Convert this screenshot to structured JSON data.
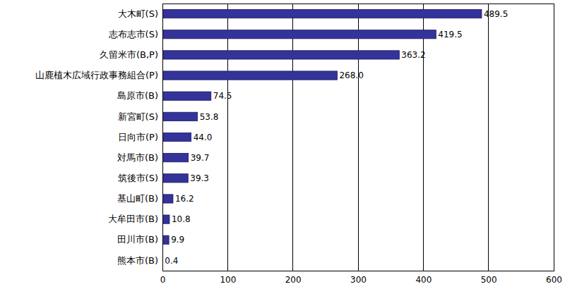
{
  "chart_data": {
    "type": "bar",
    "orientation": "horizontal",
    "categories": [
      "大木町(S)",
      "志布志市(S)",
      "久留米市(B,P)",
      "山鹿植木広域行政事務組合(P)",
      "島原市(B)",
      "新宮町(S)",
      "日向市(P)",
      "対馬市(B)",
      "筑後市(S)",
      "基山町(B)",
      "大牟田市(B)",
      "田川市(B)",
      "熊本市(B)"
    ],
    "values": [
      489.5,
      419.5,
      363.2,
      268.0,
      74.5,
      53.8,
      44.0,
      39.7,
      39.3,
      16.2,
      10.8,
      9.9,
      0.4
    ],
    "value_labels": [
      "489.5",
      "419.5",
      "363.2",
      "268.0",
      "74.5",
      "53.8",
      "44.0",
      "39.7",
      "39.3",
      "16.2",
      "10.8",
      "9.9",
      "0.4"
    ],
    "color": "#333399",
    "xlim": [
      0,
      600
    ],
    "xticks": [
      0,
      100,
      200,
      300,
      400,
      500,
      600
    ],
    "grid": true,
    "data_labels": true
  }
}
